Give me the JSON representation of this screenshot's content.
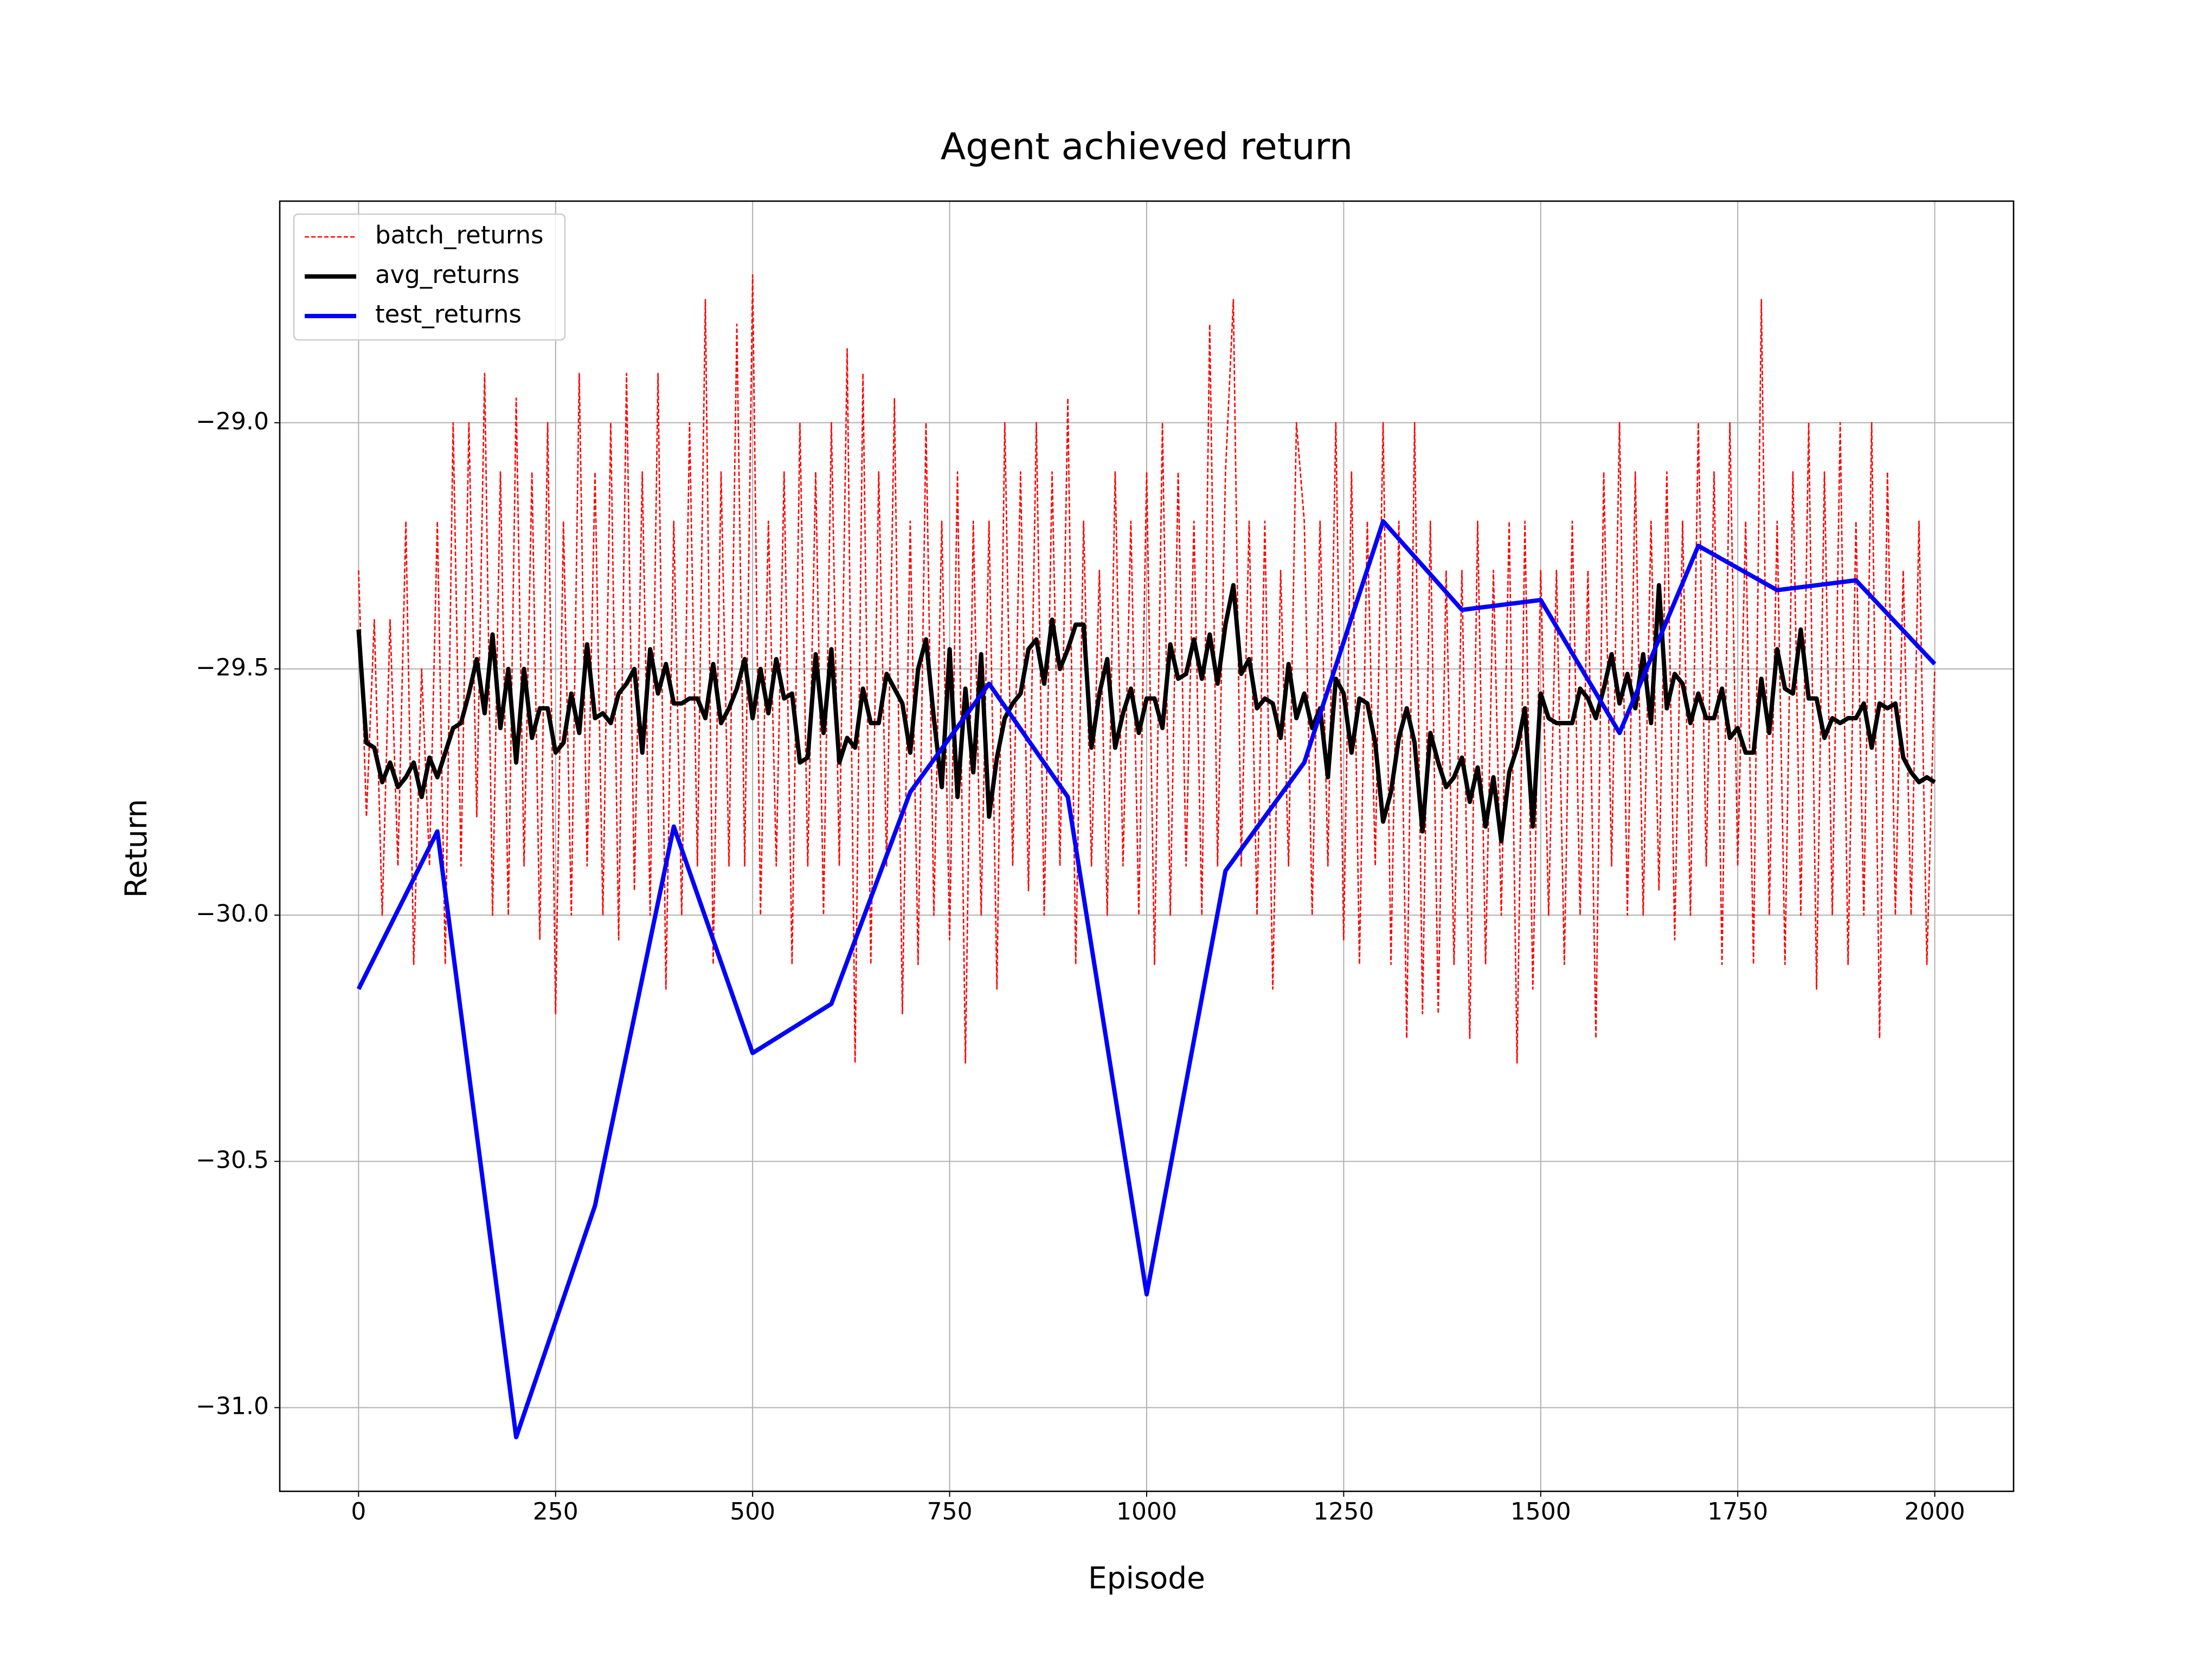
{
  "chart_data": {
    "type": "line",
    "title": "Agent achieved return",
    "xlabel": "Episode",
    "ylabel": "Return",
    "xlim": [
      -100,
      2100
    ],
    "ylim": [
      -31.17,
      -28.55
    ],
    "xticks": [
      0,
      250,
      500,
      750,
      1000,
      1250,
      1500,
      1750,
      2000
    ],
    "yticks": [
      {
        "value": -31.0,
        "label": "−31.0"
      },
      {
        "value": -30.5,
        "label": "−30.5"
      },
      {
        "value": -30.0,
        "label": "−30.0"
      },
      {
        "value": -29.5,
        "label": "−29.5"
      },
      {
        "value": -29.0,
        "label": "−29.0"
      }
    ],
    "grid": true,
    "legend": "upper left",
    "x": [
      0,
      10,
      20,
      30,
      40,
      50,
      60,
      70,
      80,
      90,
      100,
      110,
      120,
      130,
      140,
      150,
      160,
      170,
      180,
      190,
      200,
      210,
      220,
      230,
      240,
      250,
      260,
      270,
      280,
      290,
      300,
      310,
      320,
      330,
      340,
      350,
      360,
      370,
      380,
      390,
      400,
      410,
      420,
      430,
      440,
      450,
      460,
      470,
      480,
      490,
      500,
      510,
      520,
      530,
      540,
      550,
      560,
      570,
      580,
      590,
      600,
      610,
      620,
      630,
      640,
      650,
      660,
      670,
      680,
      690,
      700,
      710,
      720,
      730,
      740,
      750,
      760,
      770,
      780,
      790,
      800,
      810,
      820,
      830,
      840,
      850,
      860,
      870,
      880,
      890,
      900,
      910,
      920,
      930,
      940,
      950,
      960,
      970,
      980,
      990,
      1000,
      1010,
      1020,
      1030,
      1040,
      1050,
      1060,
      1070,
      1080,
      1090,
      1100,
      1110,
      1120,
      1130,
      1140,
      1150,
      1160,
      1170,
      1180,
      1190,
      1200,
      1210,
      1220,
      1230,
      1240,
      1250,
      1260,
      1270,
      1280,
      1290,
      1300,
      1310,
      1320,
      1330,
      1340,
      1350,
      1360,
      1370,
      1380,
      1390,
      1400,
      1410,
      1420,
      1430,
      1440,
      1450,
      1460,
      1470,
      1480,
      1490,
      1500,
      1510,
      1520,
      1530,
      1540,
      1550,
      1560,
      1570,
      1580,
      1590,
      1600,
      1610,
      1620,
      1630,
      1640,
      1650,
      1660,
      1670,
      1680,
      1690,
      1700,
      1710,
      1720,
      1730,
      1740,
      1750,
      1760,
      1770,
      1780,
      1790,
      1800,
      1810,
      1820,
      1830,
      1840,
      1850,
      1860,
      1870,
      1880,
      1890,
      1900,
      1910,
      1920,
      1930,
      1940,
      1950,
      1960,
      1970,
      1980,
      1990,
      2000
    ],
    "series": [
      {
        "name": "batch_returns",
        "color": "#ff0000",
        "linestyle": "dashed",
        "values": [
          -29.3,
          -29.8,
          -29.4,
          -30.0,
          -29.4,
          -29.9,
          -29.2,
          -30.1,
          -29.5,
          -29.9,
          -29.2,
          -30.1,
          -29.0,
          -29.9,
          -29.0,
          -29.8,
          -28.9,
          -30.0,
          -29.1,
          -30.0,
          -28.95,
          -29.9,
          -29.1,
          -30.05,
          -29.0,
          -30.2,
          -29.2,
          -30.0,
          -28.9,
          -29.9,
          -29.1,
          -30.0,
          -29.0,
          -30.05,
          -28.9,
          -29.95,
          -29.1,
          -30.0,
          -28.9,
          -30.15,
          -29.2,
          -30.0,
          -29.0,
          -29.9,
          -28.75,
          -30.1,
          -29.1,
          -29.9,
          -28.8,
          -29.9,
          -28.7,
          -30.0,
          -29.2,
          -29.9,
          -29.1,
          -30.1,
          -29.0,
          -29.9,
          -29.1,
          -30.0,
          -29.0,
          -29.9,
          -28.85,
          -30.3,
          -28.9,
          -30.1,
          -29.1,
          -29.9,
          -28.95,
          -30.2,
          -29.2,
          -30.1,
          -29.0,
          -30.0,
          -29.2,
          -30.05,
          -29.1,
          -30.3,
          -29.2,
          -30.0,
          -29.2,
          -30.15,
          -29.0,
          -29.9,
          -29.1,
          -29.95,
          -29.0,
          -30.0,
          -29.1,
          -29.9,
          -28.95,
          -30.1,
          -29.2,
          -29.9,
          -29.3,
          -30.0,
          -29.1,
          -29.9,
          -29.2,
          -30.0,
          -29.1,
          -30.1,
          -29.0,
          -30.0,
          -29.1,
          -29.9,
          -29.2,
          -30.0,
          -28.8,
          -29.9,
          -29.1,
          -28.75,
          -29.9,
          -29.2,
          -30.0,
          -29.2,
          -30.15,
          -29.3,
          -29.9,
          -29.0,
          -29.2,
          -30.0,
          -29.2,
          -29.9,
          -29.0,
          -30.05,
          -29.1,
          -30.1,
          -29.2,
          -29.9,
          -29.0,
          -30.1,
          -29.2,
          -30.25,
          -29.0,
          -30.2,
          -29.2,
          -30.2,
          -29.3,
          -30.1,
          -29.3,
          -30.25,
          -29.2,
          -30.1,
          -29.3,
          -30.0,
          -29.2,
          -30.3,
          -29.2,
          -30.15,
          -29.3,
          -30.0,
          -29.3,
          -30.1,
          -29.2,
          -30.0,
          -29.3,
          -30.25,
          -29.1,
          -29.9,
          -29.0,
          -30.0,
          -29.1,
          -30.0,
          -29.2,
          -29.95,
          -29.1,
          -30.05,
          -29.2,
          -30.0,
          -29.0,
          -29.9,
          -29.1,
          -30.1,
          -29.0,
          -29.9,
          -29.2,
          -30.1,
          -28.75,
          -30.0,
          -29.2,
          -30.1,
          -29.1,
          -30.0,
          -29.0,
          -30.15,
          -29.1,
          -30.0,
          -29.0,
          -30.1,
          -29.2,
          -30.0,
          -29.0,
          -30.25,
          -29.1,
          -30.0,
          -29.3,
          -30.0,
          -29.2,
          -30.1,
          -29.5
        ]
      },
      {
        "name": "avg_returns",
        "color": "#000000",
        "linestyle": "solid",
        "values": [
          -29.42,
          -29.65,
          -29.66,
          -29.73,
          -29.69,
          -29.74,
          -29.72,
          -29.69,
          -29.76,
          -29.68,
          -29.72,
          -29.67,
          -29.62,
          -29.61,
          -29.55,
          -29.48,
          -29.59,
          -29.43,
          -29.62,
          -29.5,
          -29.69,
          -29.5,
          -29.64,
          -29.58,
          -29.58,
          -29.67,
          -29.65,
          -29.55,
          -29.63,
          -29.45,
          -29.6,
          -29.59,
          -29.61,
          -29.55,
          -29.53,
          -29.5,
          -29.67,
          -29.46,
          -29.55,
          -29.49,
          -29.57,
          -29.57,
          -29.56,
          -29.56,
          -29.6,
          -29.49,
          -29.61,
          -29.58,
          -29.54,
          -29.48,
          -29.6,
          -29.5,
          -29.59,
          -29.48,
          -29.56,
          -29.55,
          -29.69,
          -29.68,
          -29.47,
          -29.63,
          -29.46,
          -29.69,
          -29.64,
          -29.66,
          -29.54,
          -29.61,
          -29.61,
          -29.51,
          -29.54,
          -29.57,
          -29.67,
          -29.5,
          -29.44,
          -29.6,
          -29.74,
          -29.46,
          -29.76,
          -29.54,
          -29.71,
          -29.47,
          -29.8,
          -29.68,
          -29.6,
          -29.57,
          -29.55,
          -29.46,
          -29.44,
          -29.53,
          -29.4,
          -29.5,
          -29.46,
          -29.41,
          -29.41,
          -29.66,
          -29.55,
          -29.48,
          -29.66,
          -29.59,
          -29.54,
          -29.63,
          -29.56,
          -29.56,
          -29.62,
          -29.45,
          -29.52,
          -29.51,
          -29.44,
          -29.52,
          -29.43,
          -29.53,
          -29.41,
          -29.33,
          -29.51,
          -29.48,
          -29.58,
          -29.56,
          -29.57,
          -29.64,
          -29.49,
          -29.6,
          -29.55,
          -29.62,
          -29.58,
          -29.72,
          -29.52,
          -29.55,
          -29.67,
          -29.56,
          -29.57,
          -29.65,
          -29.81,
          -29.75,
          -29.64,
          -29.58,
          -29.65,
          -29.83,
          -29.63,
          -29.69,
          -29.74,
          -29.72,
          -29.68,
          -29.77,
          -29.7,
          -29.82,
          -29.72,
          -29.85,
          -29.71,
          -29.66,
          -29.58,
          -29.82,
          -29.55,
          -29.6,
          -29.61,
          -29.61,
          -29.61,
          -29.54,
          -29.56,
          -29.6,
          -29.54,
          -29.47,
          -29.57,
          -29.51,
          -29.58,
          -29.47,
          -29.61,
          -29.33,
          -29.58,
          -29.51,
          -29.53,
          -29.61,
          -29.55,
          -29.6,
          -29.6,
          -29.54,
          -29.64,
          -29.62,
          -29.67,
          -29.67,
          -29.52,
          -29.63,
          -29.46,
          -29.54,
          -29.55,
          -29.42,
          -29.56,
          -29.56,
          -29.64,
          -29.6,
          -29.61,
          -29.6,
          -29.6,
          -29.57,
          -29.66,
          -29.57,
          -29.58,
          -29.57,
          -29.68,
          -29.71,
          -29.73,
          -29.72,
          -29.73
        ]
      },
      {
        "name": "test_returns",
        "color": "#0000ff",
        "linestyle": "solid",
        "x": [
          0,
          100,
          200,
          300,
          400,
          500,
          600,
          700,
          800,
          900,
          1000,
          1100,
          1200,
          1300,
          1400,
          1500,
          1600,
          1700,
          1800,
          1900,
          2000
        ],
        "values": [
          -30.15,
          -29.83,
          -31.06,
          -30.59,
          -29.82,
          -30.28,
          -30.18,
          -29.75,
          -29.53,
          -29.76,
          -30.77,
          -29.91,
          -29.69,
          -29.2,
          -29.38,
          -29.36,
          -29.63,
          -29.25,
          -29.34,
          -29.32,
          -29.49
        ]
      }
    ]
  }
}
